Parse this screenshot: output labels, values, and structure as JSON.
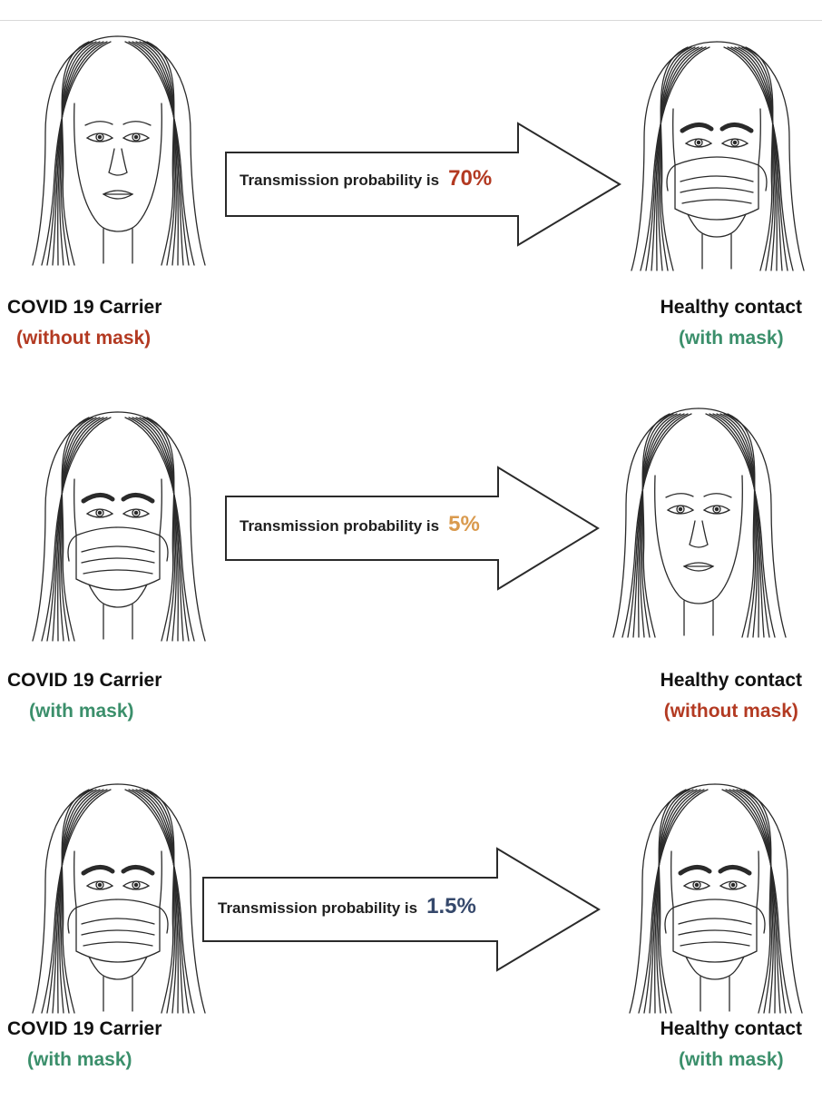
{
  "colors": {
    "red": "#b33a22",
    "orange": "#d99a4e",
    "blue": "#35486b",
    "green": "#3b8f6b",
    "line": "#2a2a2a"
  },
  "rows": [
    {
      "left": {
        "role": "COVID 19 Carrier",
        "status": "(without mask)",
        "status_color": "red",
        "mask": false
      },
      "arrow": {
        "text": "Transmission probability is",
        "pct": "70%",
        "pct_color": "red",
        "pct_value": 70
      },
      "right": {
        "role": "Healthy contact",
        "status": "(with mask)",
        "status_color": "green",
        "mask": true
      }
    },
    {
      "left": {
        "role": "COVID 19 Carrier",
        "status": "(with mask)",
        "status_color": "green",
        "mask": true
      },
      "arrow": {
        "text": "Transmission probability is",
        "pct": "5%",
        "pct_color": "orange",
        "pct_value": 5
      },
      "right": {
        "role": "Healthy contact",
        "status": "(without mask)",
        "status_color": "red",
        "mask": false
      }
    },
    {
      "left": {
        "role": "COVID 19 Carrier",
        "status": "(with mask)",
        "status_color": "green",
        "mask": true
      },
      "arrow": {
        "text": "Transmission probability is",
        "pct": "1.5%",
        "pct_color": "blue",
        "pct_value": 1.5
      },
      "right": {
        "role": "Healthy contact",
        "status": "(with mask)",
        "status_color": "green",
        "mask": true
      }
    }
  ]
}
